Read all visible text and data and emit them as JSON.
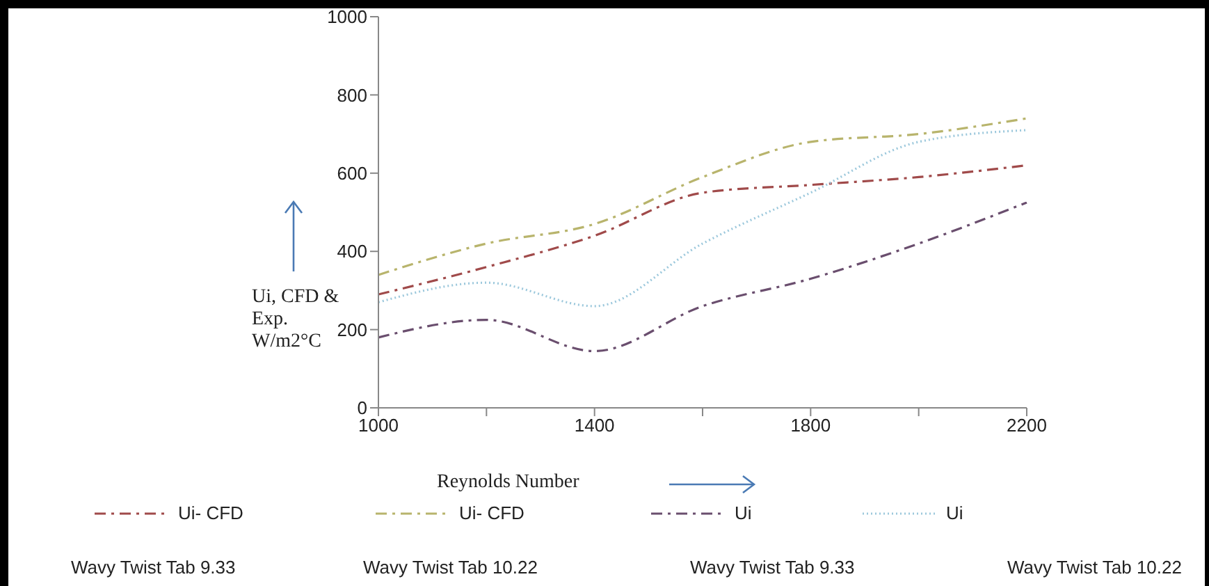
{
  "chart_data": {
    "type": "line",
    "xlabel": "Reynolds Number",
    "ylabel": "Ui, CFD & Exp. W/m2°C",
    "categories": [
      "1000",
      null,
      "1400",
      null,
      "1800",
      null,
      "2200"
    ],
    "series": [
      {
        "name": "Ui- CFD",
        "color": "#a04a4a",
        "line_style": "dashed",
        "values": [
          290,
          360,
          440,
          550,
          570,
          590,
          620
        ]
      },
      {
        "name": "Ui- CFD",
        "color": "#b8b46c",
        "line_style": "dashed",
        "values": [
          340,
          420,
          470,
          590,
          680,
          700,
          740
        ]
      },
      {
        "name": "Ui",
        "color": "#6a4e6e",
        "line_style": "dashed",
        "values": [
          180,
          225,
          145,
          260,
          330,
          420,
          525
        ]
      },
      {
        "name": "Ui",
        "color": "#9cc8dc",
        "line_style": "dotted",
        "values": [
          270,
          320,
          260,
          420,
          550,
          680,
          710
        ]
      }
    ],
    "annotations": [
      "Wavy Twist Tab 9.33",
      "Wavy Twist Tab 10.22",
      "Wavy Twist Tab 9.33",
      "Wavy Twist Tab 10.22"
    ],
    "ylim": [
      0,
      1000
    ],
    "yticks": [
      0,
      200,
      400,
      600,
      800,
      1000
    ],
    "grid": false,
    "legend": "bottom",
    "marker": "none"
  }
}
